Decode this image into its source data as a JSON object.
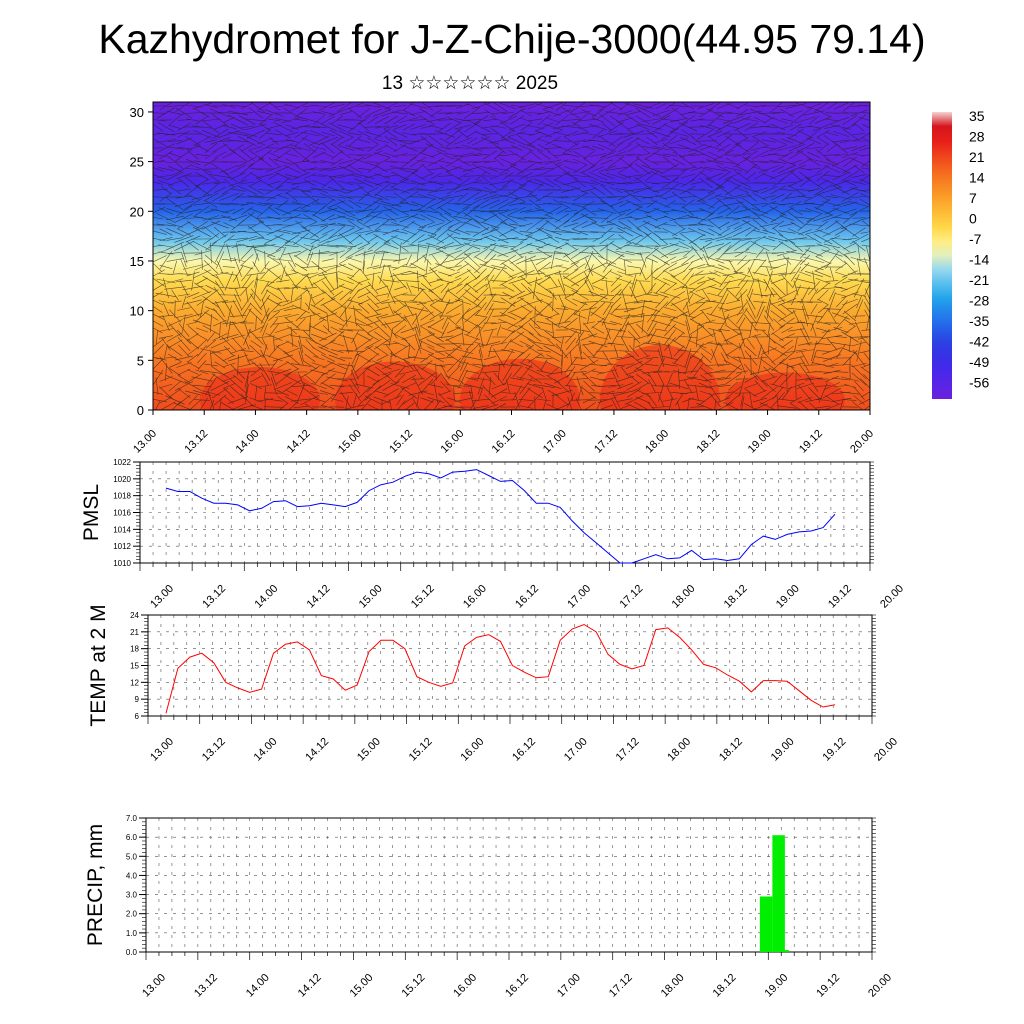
{
  "title": "Kazhydromet for J-Z-Chije-3000(44.95 79.14)",
  "subtitle": "13 ☆☆☆☆☆☆ 2025",
  "time_labels": [
    "13.00",
    "13.12",
    "14.00",
    "14.12",
    "15.00",
    "15.12",
    "16.00",
    "16.12",
    "17.00",
    "17.12",
    "18.00",
    "18.12",
    "19.00",
    "19.12",
    "20.00"
  ],
  "colors": {
    "pmsl": "#0000ff",
    "temp": "#ff0000",
    "precip": "#00ee00"
  },
  "chart_data": [
    {
      "type": "heatmap",
      "name": "upper-air temperature and wind cross-section",
      "x_labels": [
        "13.00",
        "13.12",
        "14.00",
        "14.12",
        "15.00",
        "15.12",
        "16.00",
        "16.12",
        "17.00",
        "17.12",
        "18.00",
        "18.12",
        "19.00",
        "19.12",
        "20.00"
      ],
      "y_ticks": [
        0,
        5,
        10,
        15,
        20,
        25,
        30
      ],
      "ylim": [
        0,
        31
      ],
      "colorbar_labels": [
        "35",
        "28",
        "21",
        "14",
        "7",
        "0",
        "-7",
        "-14",
        "-21",
        "-28",
        "-35",
        "-42",
        "-49",
        "-56"
      ],
      "colorbar_range": [
        -56,
        35
      ],
      "temperature_profile_by_height": [
        {
          "y": 0,
          "value": 20
        },
        {
          "y": 5,
          "value": 14
        },
        {
          "y": 10,
          "value": 6
        },
        {
          "y": 13,
          "value": -2
        },
        {
          "y": 15,
          "value": -9
        },
        {
          "y": 17,
          "value": -18
        },
        {
          "y": 20,
          "value": -33
        },
        {
          "y": 23,
          "value": -48
        },
        {
          "y": 25,
          "value": -55
        },
        {
          "y": 28,
          "value": -52
        },
        {
          "y": 31,
          "value": -60
        }
      ],
      "overlay": "wind barbs"
    },
    {
      "type": "line",
      "ylabel": "PMSL",
      "ylim": [
        1010,
        1022
      ],
      "y_ticks": [
        1010,
        1012,
        1014,
        1016,
        1018,
        1020,
        1022
      ],
      "x_labels": [
        "13.00",
        "13.12",
        "14.00",
        "14.12",
        "15.00",
        "15.12",
        "16.00",
        "16.12",
        "17.00",
        "17.12",
        "18.00",
        "18.12",
        "19.00",
        "19.12",
        "20.00"
      ],
      "x_hours": [
        0,
        3,
        6,
        9,
        12,
        15,
        18,
        21,
        24,
        27,
        30,
        33,
        36,
        39,
        42,
        45,
        48,
        51,
        54,
        57,
        60,
        63,
        66,
        69,
        72,
        75,
        78,
        81,
        84,
        87,
        90,
        93,
        96,
        99,
        102,
        105,
        108,
        111,
        114,
        117,
        120,
        123,
        126,
        129,
        132,
        135,
        138,
        141,
        144,
        147,
        150,
        153,
        156,
        159,
        162,
        165,
        168
      ],
      "values": [
        1018.9,
        1018.5,
        1018.5,
        1017.7,
        1017.1,
        1017.1,
        1016.9,
        1016.2,
        1016.5,
        1017.3,
        1017.4,
        1016.7,
        1016.8,
        1017.1,
        1016.9,
        1016.7,
        1017.2,
        1018.6,
        1019.3,
        1019.6,
        1020.3,
        1020.8,
        1020.6,
        1020.1,
        1020.8,
        1020.9,
        1021.1,
        1020.4,
        1019.7,
        1019.8,
        1018.6,
        1017.1,
        1017.1,
        1016.6,
        1015.0,
        1013.6,
        1012.4,
        1011.2,
        1010.0,
        1010.0,
        1010.5,
        1011.0,
        1010.5,
        1010.6,
        1011.5,
        1010.4,
        1010.5,
        1010.3,
        1010.5,
        1012.2,
        1013.2,
        1012.8,
        1013.4,
        1013.7,
        1013.8,
        1014.2,
        1015.8
      ]
    },
    {
      "type": "line",
      "ylabel": "TEMP at 2 M",
      "ylim": [
        6,
        24
      ],
      "y_ticks": [
        6,
        9,
        12,
        15,
        18,
        21,
        24
      ],
      "x_labels": [
        "13.00",
        "13.12",
        "14.00",
        "14.12",
        "15.00",
        "15.12",
        "16.00",
        "16.12",
        "17.00",
        "17.12",
        "18.00",
        "18.12",
        "19.00",
        "19.12",
        "20.00"
      ],
      "x_hours": [
        0,
        3,
        6,
        9,
        12,
        15,
        18,
        21,
        24,
        27,
        30,
        33,
        36,
        39,
        42,
        45,
        48,
        51,
        54,
        57,
        60,
        63,
        66,
        69,
        72,
        75,
        78,
        81,
        84,
        87,
        90,
        93,
        96,
        99,
        102,
        105,
        108,
        111,
        114,
        117,
        120,
        123,
        126,
        129,
        132,
        135,
        138,
        141,
        144,
        147,
        150,
        153,
        156,
        159,
        162,
        165,
        168
      ],
      "values": [
        6.5,
        14.5,
        16.5,
        17.2,
        15.5,
        12.0,
        11.0,
        10.2,
        10.8,
        17.2,
        18.8,
        19.2,
        17.8,
        13.2,
        12.6,
        10.6,
        11.5,
        17.5,
        19.5,
        19.5,
        18.0,
        13.0,
        12.0,
        11.3,
        11.9,
        18.5,
        20.0,
        20.5,
        19.3,
        15.0,
        13.8,
        12.8,
        13.0,
        19.5,
        21.5,
        22.3,
        21.0,
        17.0,
        15.2,
        14.4,
        15.0,
        21.4,
        21.7,
        20.0,
        17.8,
        15.2,
        14.6,
        13.3,
        12.2,
        10.3,
        12.3,
        12.3,
        12.2,
        10.5,
        8.8,
        7.6,
        8.0
      ]
    },
    {
      "type": "bar",
      "ylabel": "PRECIP, mm",
      "ylim": [
        0,
        7
      ],
      "y_ticks": [
        "0.0",
        "1.0",
        "2.0",
        "3.0",
        "4.0",
        "5.0",
        "6.0",
        "7.0"
      ],
      "x_labels": [
        "13.00",
        "13.12",
        "14.00",
        "14.12",
        "15.00",
        "15.12",
        "16.00",
        "16.12",
        "17.00",
        "17.12",
        "18.00",
        "18.12",
        "19.00",
        "19.12",
        "20.00"
      ],
      "bars": [
        {
          "start_hour": 144,
          "end_hour": 147,
          "value": 2.9
        },
        {
          "start_hour": 147,
          "end_hour": 150,
          "value": 6.1
        },
        {
          "start_hour": 150,
          "end_hour": 151,
          "value": 0.1
        }
      ]
    }
  ]
}
